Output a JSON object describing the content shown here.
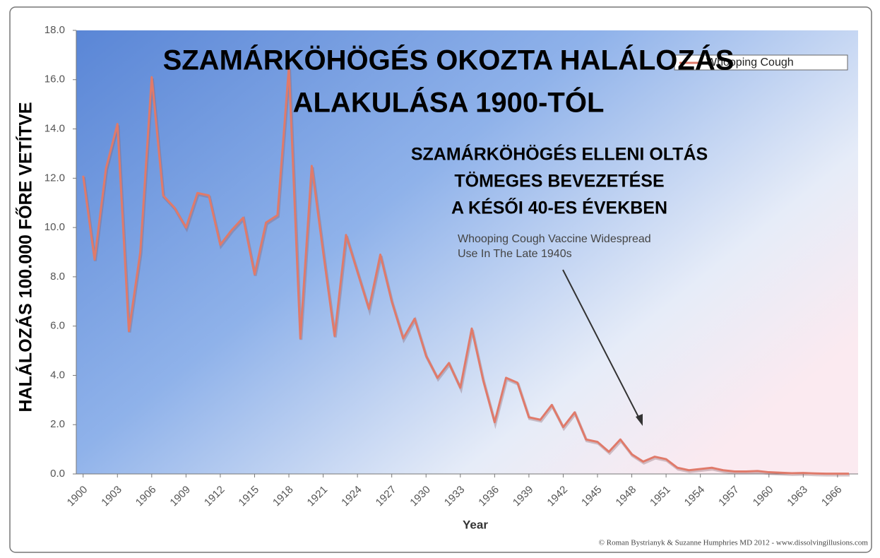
{
  "chart_data": {
    "type": "line",
    "title": [
      "SZAMÁRKÖHÖGÉS OKOZTA HALÁLOZÁS",
      "ALAKULÁSA 1900-TÓL"
    ],
    "annotation": [
      "SZAMÁRKÖHÖGÉS ELLENI OLTÁS",
      "TÖMEGES BEVEZETÉSE",
      "A KÉSŐI 40-ES ÉVEKBEN"
    ],
    "original_annotation": [
      "Whooping Cough  Vaccine Widespread",
      "Use In The Late 1940s"
    ],
    "x_label": "Year",
    "y_label": "HALÁLOZÁS 100.000 FŐRE VETÍTVE",
    "credit": "© Roman Bystrianyk & Suzanne Humphries MD 2012 - www.dissolvingillusions.com",
    "legend_position": "upper right",
    "x": [
      1900,
      1901,
      1902,
      1903,
      1904,
      1905,
      1906,
      1907,
      1908,
      1909,
      1910,
      1911,
      1912,
      1913,
      1914,
      1915,
      1916,
      1917,
      1918,
      1919,
      1920,
      1921,
      1922,
      1923,
      1924,
      1925,
      1926,
      1927,
      1928,
      1929,
      1930,
      1931,
      1932,
      1933,
      1934,
      1935,
      1936,
      1937,
      1938,
      1939,
      1940,
      1941,
      1942,
      1943,
      1944,
      1945,
      1946,
      1947,
      1948,
      1949,
      1950,
      1951,
      1952,
      1953,
      1954,
      1955,
      1956,
      1957,
      1958,
      1959,
      1960,
      1961,
      1962,
      1963,
      1964,
      1965,
      1966,
      1967
    ],
    "series": [
      {
        "name": "Whooping Cough",
        "color": "#e07a6a",
        "values": [
          12.1,
          8.7,
          12.4,
          14.2,
          5.8,
          9.0,
          16.1,
          11.3,
          10.8,
          10.0,
          11.4,
          11.3,
          9.3,
          9.9,
          10.4,
          8.1,
          10.2,
          10.5,
          16.5,
          5.5,
          12.5,
          9.0,
          5.6,
          9.7,
          8.2,
          6.7,
          8.9,
          7.0,
          5.5,
          6.3,
          4.8,
          3.9,
          4.5,
          3.5,
          5.9,
          3.8,
          2.1,
          3.9,
          3.7,
          2.3,
          2.2,
          2.8,
          1.9,
          2.5,
          1.4,
          1.3,
          0.9,
          1.4,
          0.8,
          0.5,
          0.7,
          0.6,
          0.25,
          0.15,
          0.2,
          0.25,
          0.15,
          0.1,
          0.1,
          0.12,
          0.07,
          0.05,
          0.03,
          0.04,
          0.02,
          0.01,
          0.01,
          0.01
        ]
      }
    ],
    "xlim": [
      1899.4,
      1967.8
    ],
    "xticks": [
      1900,
      1903,
      1906,
      1909,
      1912,
      1915,
      1918,
      1921,
      1924,
      1927,
      1930,
      1933,
      1936,
      1939,
      1942,
      1945,
      1948,
      1951,
      1954,
      1957,
      1960,
      1963,
      1966
    ],
    "ylim": [
      0,
      18
    ],
    "yticks": [
      {
        "value": 0,
        "label": "0.0"
      },
      {
        "value": 2,
        "label": "2.0"
      },
      {
        "value": 4,
        "label": "4.0"
      },
      {
        "value": 6,
        "label": "6.0"
      },
      {
        "value": 8,
        "label": "8.0"
      },
      {
        "value": 10,
        "label": "10.0"
      },
      {
        "value": 12,
        "label": "12.0"
      },
      {
        "value": 14,
        "label": "14.0"
      },
      {
        "value": 16,
        "label": "16.0"
      },
      {
        "value": 18,
        "label": "18.0"
      }
    ]
  }
}
